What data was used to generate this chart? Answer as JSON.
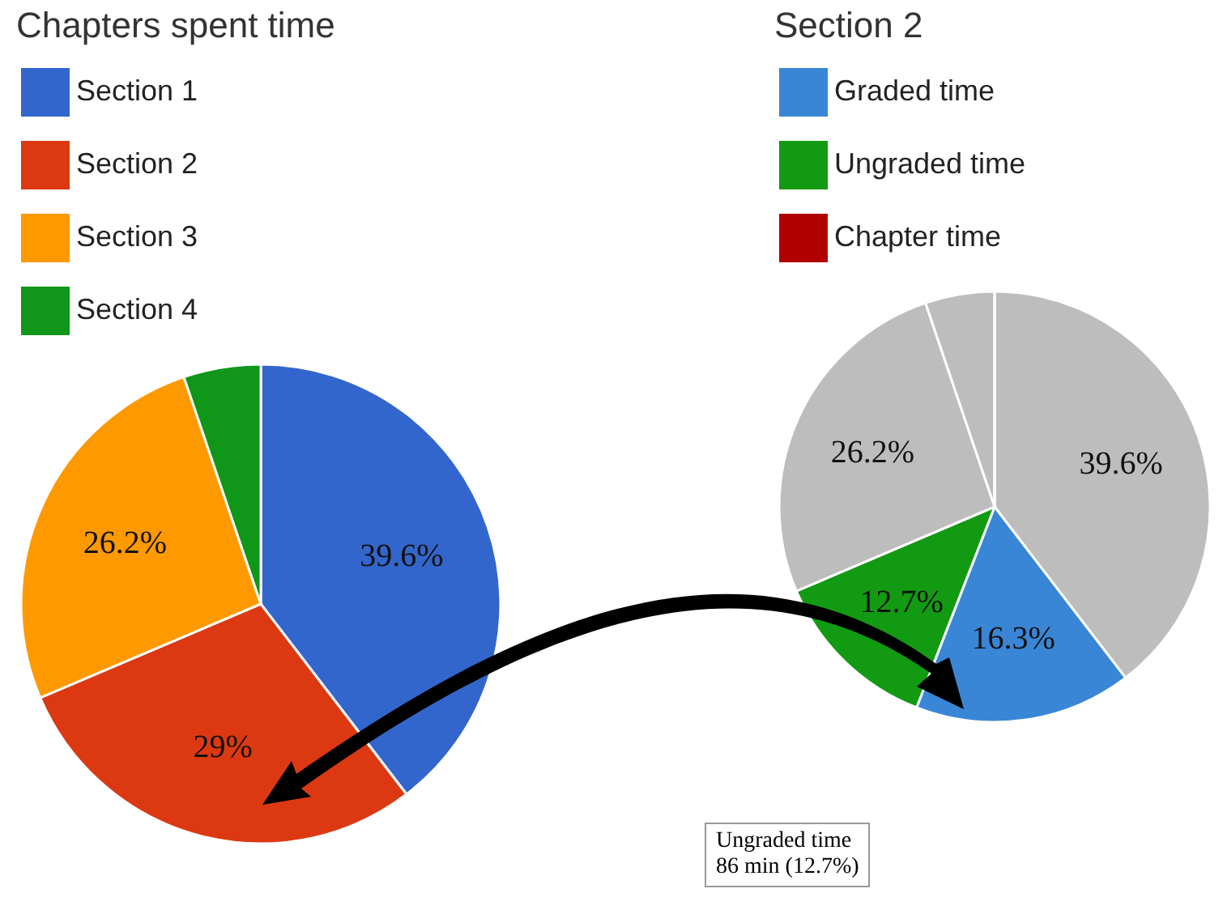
{
  "chart_data": [
    {
      "type": "pie",
      "title": "Chapters spent time",
      "categories": [
        "Section 1",
        "Section 2",
        "Section 3",
        "Section 4"
      ],
      "values": [
        39.6,
        29,
        26.2,
        5.2
      ],
      "value_labels": [
        "39.6%",
        "29%",
        "26.2%",
        null
      ],
      "colors": [
        "#3366cc",
        "#dc3912",
        "#ff9900",
        "#109618"
      ],
      "legend": "top left"
    },
    {
      "type": "pie",
      "title": "Section 2",
      "categories": [
        null,
        "Graded time",
        "Ungraded time",
        null,
        null,
        "Chapter time"
      ],
      "values": [
        39.6,
        16.3,
        12.7,
        26.2,
        5.2,
        0
      ],
      "value_labels": [
        "39.6%",
        "16.3%",
        "12.7%",
        "26.2%",
        null,
        null
      ],
      "colors": [
        "#bdbdbd",
        "#3a86d6",
        "#129a12",
        "#bdbdbd",
        "#bdbdbd",
        "#b00000"
      ],
      "legend": "top left",
      "annotations": [
        "Ungraded time\n86 min (12.7%)"
      ]
    }
  ]
}
